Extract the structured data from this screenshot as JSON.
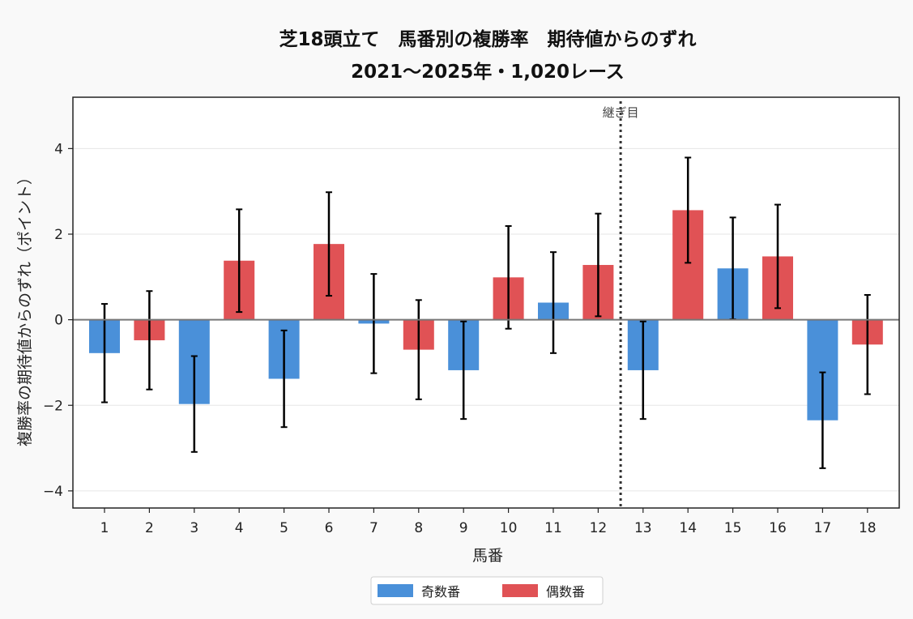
{
  "chart_data": {
    "type": "bar",
    "title_line1": "芝18頭立て　馬番別の複勝率　期待値からのずれ",
    "title_line2": "2021〜2025年・1,020レース",
    "xlabel": "馬番",
    "ylabel": "複勝率の期待値からのずれ（ポイント）",
    "categories": [
      "1",
      "2",
      "3",
      "4",
      "5",
      "6",
      "7",
      "8",
      "9",
      "10",
      "11",
      "12",
      "13",
      "14",
      "15",
      "16",
      "17",
      "18"
    ],
    "values": [
      -0.78,
      -0.48,
      -1.97,
      1.38,
      -1.38,
      1.77,
      -0.09,
      -0.7,
      -1.18,
      0.99,
      0.4,
      1.28,
      -1.18,
      2.56,
      1.2,
      1.48,
      -2.35,
      -0.58
    ],
    "error": [
      1.15,
      1.15,
      1.12,
      1.2,
      1.13,
      1.21,
      1.16,
      1.16,
      1.14,
      1.2,
      1.18,
      1.2,
      1.14,
      1.23,
      1.19,
      1.21,
      1.12,
      1.16
    ],
    "groups": [
      "odd",
      "even",
      "odd",
      "even",
      "odd",
      "even",
      "odd",
      "even",
      "odd",
      "even",
      "odd",
      "even",
      "odd",
      "even",
      "odd",
      "even",
      "odd",
      "even"
    ],
    "series": [
      {
        "key": "odd",
        "name": "奇数番",
        "color": "#4a90d9"
      },
      {
        "key": "even",
        "name": "偶数番",
        "color": "#e05255"
      }
    ],
    "yticks": [
      "−4",
      "−2",
      "0",
      "2",
      "4"
    ],
    "ytick_values": [
      -4,
      -2,
      0,
      2,
      4
    ],
    "ylim": [
      -4.4,
      5.2
    ],
    "grid": true,
    "annotation": {
      "label": "継ぎ目",
      "x_between": [
        12,
        13
      ]
    },
    "legend_position": "bottom-center"
  }
}
